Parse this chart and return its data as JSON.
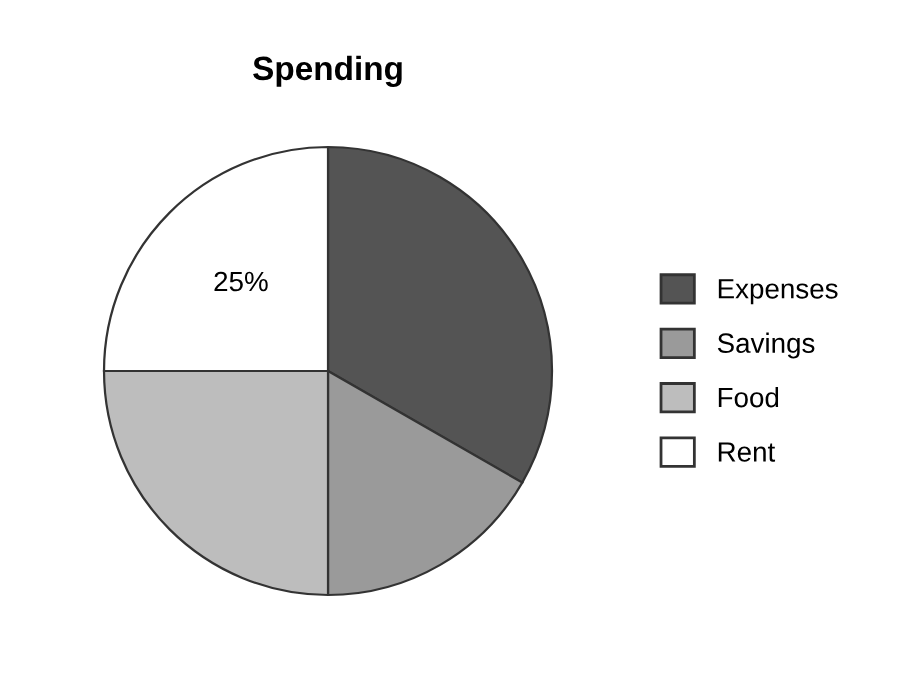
{
  "chart_data": {
    "type": "pie",
    "title": "Spending",
    "categories": [
      "Expenses",
      "Savings",
      "Food",
      "Rent"
    ],
    "values": [
      33.3,
      16.7,
      25,
      25
    ],
    "colors": [
      "#545454",
      "#9a9a9a",
      "#bdbdbd",
      "#ffffff"
    ],
    "value_labels": [
      null,
      null,
      null,
      "25%"
    ],
    "legend": "right"
  }
}
